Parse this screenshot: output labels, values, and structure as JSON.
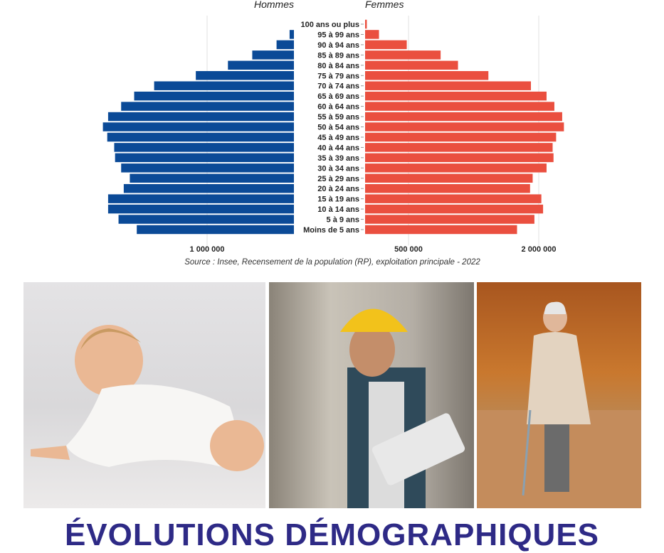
{
  "chart_data": {
    "type": "bar",
    "orientation": "horizontal-population-pyramid",
    "series_labels": {
      "left": "Hommes",
      "right": "Femmes"
    },
    "categories": [
      "100 ans ou plus",
      "95 à 99 ans",
      "90 à 94 ans",
      "85 à 89 ans",
      "80 à 84 ans",
      "75 à 79 ans",
      "70 à 74 ans",
      "65 à 69 ans",
      "60 à 64 ans",
      "55 à 59 ans",
      "50 à 54 ans",
      "45 à 49 ans",
      "40 à 44 ans",
      "35 à 39 ans",
      "30 à 34 ans",
      "25 à 29 ans",
      "20 à 24 ans",
      "15 à 19 ans",
      "10 à 14 ans",
      "5 à 9 ans",
      "Moins de 5 ans"
    ],
    "series": [
      {
        "name": "Hommes",
        "color": "#0b4a97",
        "values": [
          0,
          50000,
          200000,
          480000,
          760000,
          1130000,
          1610000,
          1840000,
          1990000,
          2140000,
          2200000,
          2150000,
          2070000,
          2060000,
          1990000,
          1890000,
          1960000,
          2140000,
          2140000,
          2020000,
          1810000
        ]
      },
      {
        "name": "Femmes",
        "color": "#ea4f3f",
        "values": [
          20000,
          160000,
          480000,
          870000,
          1070000,
          1420000,
          1910000,
          2090000,
          2180000,
          2270000,
          2290000,
          2200000,
          2160000,
          2170000,
          2090000,
          1930000,
          1900000,
          2030000,
          2050000,
          1950000,
          1750000
        ]
      }
    ],
    "x_ticks": {
      "left": [
        {
          "value": 1000000,
          "label": "1 000 000"
        }
      ],
      "right": [
        {
          "value": 500000,
          "label": "500 000"
        },
        {
          "value": 2000000,
          "label": "2 000 000"
        }
      ]
    },
    "grid": true,
    "source": "Source : Insee, Recensement de la population (RP), exploitation principale - 2022"
  },
  "photos": [
    {
      "subject": "baby crawling"
    },
    {
      "subject": "construction worker with tablet"
    },
    {
      "subject": "elderly woman with cane"
    }
  ],
  "headline": "ÉVOLUTIONS DÉMOGRAPHIQUES",
  "colors": {
    "headline": "#2e2a86"
  }
}
